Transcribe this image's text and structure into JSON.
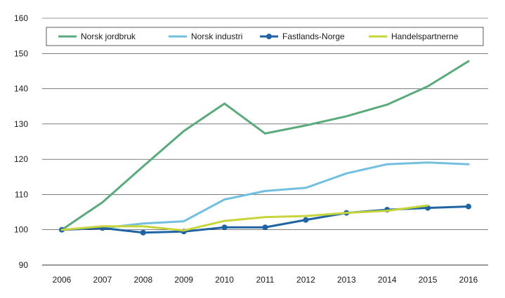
{
  "chart_data": {
    "type": "line",
    "x": [
      2006,
      2007,
      2008,
      2009,
      2010,
      2011,
      2012,
      2013,
      2014,
      2015,
      2016
    ],
    "ylim": [
      90,
      160
    ],
    "yticks": [
      90,
      100,
      110,
      120,
      130,
      140,
      150,
      160
    ],
    "grid": true,
    "legend_position": "top",
    "series": [
      {
        "name": "Norsk jordbruk",
        "color": "#5aaa7c",
        "markers": false,
        "values": [
          100,
          107.8,
          118,
          128,
          135.8,
          127.3,
          129.6,
          132.2,
          135.5,
          140.7,
          147.8
        ]
      },
      {
        "name": "Norsk industri",
        "color": "#72bfe0",
        "markers": false,
        "values": [
          100,
          100.5,
          101.8,
          102.4,
          108.6,
          111,
          111.9,
          116,
          118.6,
          119.1,
          118.6
        ]
      },
      {
        "name": "Fastlands-Norge",
        "color": "#1f63a3",
        "markers": true,
        "values": [
          100,
          100.5,
          99.2,
          99.5,
          100.7,
          100.7,
          102.8,
          104.8,
          105.7,
          106.2,
          106.6
        ]
      },
      {
        "name": "Handelspartnerne",
        "color": "#c7d53a",
        "markers": false,
        "values": [
          100,
          101,
          101,
          99.8,
          102.5,
          103.6,
          103.9,
          104.8,
          105.4,
          106.9,
          null
        ]
      }
    ]
  }
}
